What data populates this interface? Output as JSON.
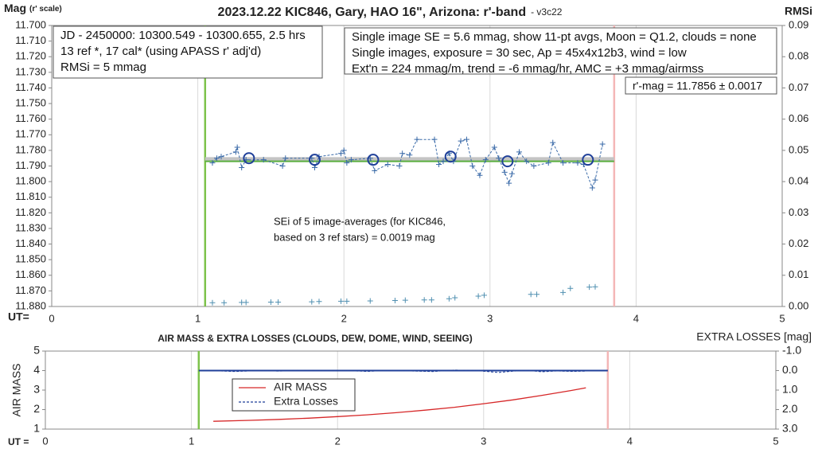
{
  "chart_data": [
    {
      "type": "scatter",
      "title": "2023.12.22 KIC846, Gary, HAO 16\", Arizona: r'-band",
      "subtitle": "- v3c22",
      "y_label": "Mag",
      "y_label_note": "(r' scale)",
      "y2_label": "RMSi",
      "x_label": "UT=",
      "xlim": [
        0,
        5
      ],
      "xticks": [
        0,
        1,
        2,
        3,
        4,
        5
      ],
      "ylim": [
        11.88,
        11.7
      ],
      "yticks": [
        {
          "value": 11.7,
          "label": "11.700"
        },
        {
          "value": 11.71,
          "label": "11.710"
        },
        {
          "value": 11.72,
          "label": "11.720"
        },
        {
          "value": 11.73,
          "label": "11.730"
        },
        {
          "value": 11.74,
          "label": "11.740"
        },
        {
          "value": 11.75,
          "label": "11.750"
        },
        {
          "value": 11.76,
          "label": "11.760"
        },
        {
          "value": 11.77,
          "label": "11.770"
        },
        {
          "value": 11.78,
          "label": "11.780"
        },
        {
          "value": 11.79,
          "label": "11.790"
        },
        {
          "value": 11.8,
          "label": "11.800"
        },
        {
          "value": 11.81,
          "label": "11.810"
        },
        {
          "value": 11.82,
          "label": "11.820"
        },
        {
          "value": 11.83,
          "label": "11.830"
        },
        {
          "value": 11.84,
          "label": "11.840"
        },
        {
          "value": 11.85,
          "label": "11.850"
        },
        {
          "value": 11.86,
          "label": "11.860"
        },
        {
          "value": 11.87,
          "label": "11.870"
        },
        {
          "value": 11.88,
          "label": "11.880"
        }
      ],
      "y2lim": [
        0,
        0.09
      ],
      "y2ticks": [
        {
          "value": 0,
          "label": "0.00"
        },
        {
          "value": 0.01,
          "label": "0.01"
        },
        {
          "value": 0.02,
          "label": "0.02"
        },
        {
          "value": 0.03,
          "label": "0.03"
        },
        {
          "value": 0.04,
          "label": "0.04"
        },
        {
          "value": 0.05,
          "label": "0.05"
        },
        {
          "value": 0.06,
          "label": "0.06"
        },
        {
          "value": 0.07,
          "label": "0.07"
        },
        {
          "value": 0.08,
          "label": "0.08"
        },
        {
          "value": 0.09,
          "label": "0.09"
        }
      ],
      "grid": "x",
      "vlines": [
        {
          "x": 1.05,
          "color": "#7dc24b"
        },
        {
          "x": 3.85,
          "color": "#f4b6b6"
        }
      ],
      "hlines": [
        {
          "y": 11.7856,
          "x": [
            1.05,
            3.85
          ],
          "color": "#c4c4c4",
          "width": 5
        },
        {
          "y": 11.787,
          "x": [
            1.05,
            3.85
          ],
          "color": "#5aae3f",
          "width": 2
        }
      ],
      "series": [
        {
          "color": "#3a6aa8",
          "line": "dashed",
          "marker": "plus",
          "x": [
            1.1,
            1.13,
            1.16,
            1.26,
            1.27,
            1.3,
            1.33,
            1.45,
            1.58,
            1.6,
            1.78,
            1.8,
            1.83,
            1.98,
            2.0,
            2.02,
            2.05,
            2.18,
            2.21,
            2.3,
            2.38,
            2.4,
            2.45,
            2.5,
            2.62,
            2.65,
            2.68,
            2.72,
            2.75,
            2.8,
            2.84,
            2.88,
            2.93,
            2.97,
            3.03,
            3.06,
            3.1,
            3.13,
            3.15,
            3.2,
            3.25,
            3.3,
            3.4,
            3.43,
            3.5,
            3.6,
            3.64,
            3.7,
            3.72,
            3.77
          ],
          "values": [
            11.788,
            11.785,
            11.784,
            11.781,
            11.778,
            11.791,
            11.786,
            11.786,
            11.79,
            11.785,
            11.785,
            11.791,
            11.784,
            11.782,
            11.78,
            11.788,
            11.786,
            11.785,
            11.793,
            11.789,
            11.79,
            11.782,
            11.783,
            11.773,
            11.773,
            11.789,
            11.787,
            11.782,
            11.787,
            11.774,
            11.773,
            11.79,
            11.796,
            11.786,
            11.778,
            11.785,
            11.794,
            11.801,
            11.795,
            11.781,
            11.787,
            11.79,
            11.788,
            11.775,
            11.788,
            11.788,
            11.789,
            11.804,
            11.799,
            11.776
          ]
        },
        {
          "color": "#1f3f99",
          "line": "none",
          "marker": "circle",
          "x": [
            1.35,
            1.8,
            2.2,
            2.73,
            3.12,
            3.67
          ],
          "values": [
            11.785,
            11.786,
            11.786,
            11.784,
            11.787,
            11.786
          ]
        },
        {
          "color": "#4f8fb0",
          "line": "none",
          "marker": "plus",
          "axis": "y2",
          "x": [
            1.1,
            1.18,
            1.3,
            1.33,
            1.5,
            1.55,
            1.78,
            1.83,
            1.98,
            2.02,
            2.18,
            2.35,
            2.42,
            2.55,
            2.6,
            2.72,
            2.76,
            2.92,
            2.96,
            3.28,
            3.32,
            3.5,
            3.55,
            3.68,
            3.72
          ],
          "values": [
            0.0012,
            0.0012,
            0.0013,
            0.0013,
            0.0014,
            0.0014,
            0.0015,
            0.0016,
            0.0017,
            0.0017,
            0.0018,
            0.0019,
            0.002,
            0.0021,
            0.0021,
            0.0025,
            0.0028,
            0.0033,
            0.0036,
            0.0039,
            0.0039,
            0.0045,
            0.0058,
            0.0062,
            0.0063
          ]
        }
      ],
      "annotations": [
        [
          "JD - 2450000: 10300.549 - 10300.655, 2.5 hrs",
          "13 ref *, 17 cal* (using APASS r' adj'd)",
          "RMSi = 5 mmag"
        ],
        [
          "Single image SE = 5.6 mmag, show  11-pt avgs, Moon = Q1.2, clouds = none",
          "Single images, exposure = 30 sec, Ap = 45x4x12b3, wind = low",
          "Ext'n = 224 mmag/m, trend = -6  mmag/hr, AMC = +3 mmag/airmss"
        ],
        [
          "r'-mag = 11.7856 ± 0.0017"
        ],
        [
          "SEi of 5 image-averages (for KIC846,",
          "based on 3 ref stars) = 0.0019 mag"
        ]
      ]
    },
    {
      "type": "line",
      "title": "AIR MASS & EXTRA LOSSES (CLOUDS, DEW, DOME, WIND, SEEING)",
      "y_label": "AIR MASS",
      "y2_label": "EXTRA LOSSES [mag]",
      "x_label": "UT =",
      "xlim": [
        0,
        5
      ],
      "xticks": [
        0,
        1,
        2,
        3,
        4,
        5
      ],
      "ylim": [
        1,
        5
      ],
      "yticks": [
        1,
        2,
        3,
        4,
        5
      ],
      "y2lim": [
        3,
        -1
      ],
      "y2ticks": [
        {
          "value": -1,
          "label": "-1.0"
        },
        {
          "value": 0,
          "label": "0.0"
        },
        {
          "value": 1,
          "label": "1.0"
        },
        {
          "value": 2,
          "label": "2.0"
        },
        {
          "value": 3,
          "label": "3.0"
        }
      ],
      "grid": "x",
      "legend": "left",
      "vlines": [
        {
          "x": 1.05,
          "color": "#7dc24b"
        },
        {
          "x": 3.85,
          "color": "#f4b6b6"
        }
      ],
      "hlines": [
        {
          "y": 0,
          "x": [
            1.05,
            3.85
          ],
          "color": "#1f3f99",
          "width": 2,
          "axis": "y2"
        }
      ],
      "series": [
        {
          "name": "AIR MASS",
          "color": "#d62728",
          "line": "solid",
          "marker": "none",
          "x": [
            1.15,
            1.4,
            1.6,
            1.8,
            2.0,
            2.2,
            2.4,
            2.6,
            2.8,
            3.0,
            3.2,
            3.4,
            3.6,
            3.7
          ],
          "values": [
            1.4,
            1.45,
            1.5,
            1.56,
            1.64,
            1.73,
            1.84,
            1.97,
            2.12,
            2.3,
            2.5,
            2.73,
            2.98,
            3.12
          ]
        },
        {
          "name": "Extra Losses",
          "color": "#1f3f99",
          "line": "dashed",
          "marker": "none",
          "axis": "y2",
          "x": [
            1.2,
            1.3,
            1.45,
            1.6,
            1.75,
            1.9,
            2.05,
            2.2,
            2.35,
            2.5,
            2.65,
            2.8,
            2.95,
            3.1,
            3.2,
            3.3,
            3.4,
            3.5,
            3.6,
            3.7
          ],
          "values": [
            0.02,
            0.05,
            0.0,
            0.03,
            -0.02,
            0.01,
            0.0,
            0.04,
            -0.01,
            0.02,
            0.05,
            -0.03,
            0.0,
            0.1,
            0.03,
            -0.01,
            0.06,
            0.02,
            0.04,
            0.03
          ]
        }
      ]
    }
  ]
}
